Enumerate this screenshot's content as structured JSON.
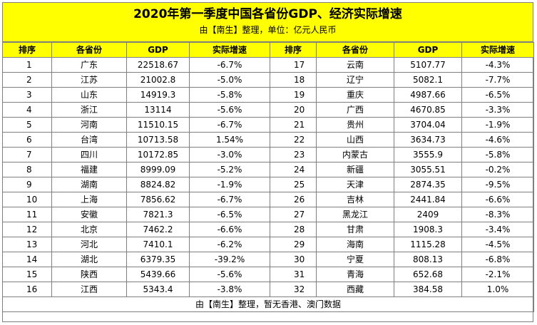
{
  "title": "2020年第一季度中国各省份GDP、经济实际增速",
  "subtitle": "由【南生】整理，单位：亿元人民币",
  "headers": [
    "排序",
    "各省份",
    "GDP",
    "实际增速",
    "排序",
    "各省份",
    "GDP",
    "实际增速"
  ],
  "rows": [
    {
      "left": {
        "rank": "1",
        "province": "广东",
        "gdp": "22518.67",
        "growth": "-6.7%"
      },
      "right": {
        "rank": "17",
        "province": "云南",
        "gdp": "5107.77",
        "growth": "-4.3%"
      }
    },
    {
      "left": {
        "rank": "2",
        "province": "江苏",
        "gdp": "21002.8",
        "growth": "-5.0%"
      },
      "right": {
        "rank": "18",
        "province": "辽宁",
        "gdp": "5082.1",
        "growth": "-7.7%"
      }
    },
    {
      "left": {
        "rank": "3",
        "province": "山东",
        "gdp": "14919.3",
        "growth": "-5.8%"
      },
      "right": {
        "rank": "19",
        "province": "重庆",
        "gdp": "4987.66",
        "growth": "-6.5%"
      }
    },
    {
      "left": {
        "rank": "4",
        "province": "浙江",
        "gdp": "13114",
        "growth": "-5.6%"
      },
      "right": {
        "rank": "20",
        "province": "广西",
        "gdp": "4670.85",
        "growth": "-3.3%"
      }
    },
    {
      "left": {
        "rank": "5",
        "province": "河南",
        "gdp": "11510.15",
        "growth": "-6.7%"
      },
      "right": {
        "rank": "21",
        "province": "贵州",
        "gdp": "3704.04",
        "growth": "-1.9%"
      }
    },
    {
      "left": {
        "rank": "6",
        "province": "台湾",
        "gdp": "10713.58",
        "growth": "1.54%"
      },
      "right": {
        "rank": "22",
        "province": "山西",
        "gdp": "3634.73",
        "growth": "-4.6%"
      }
    },
    {
      "left": {
        "rank": "7",
        "province": "四川",
        "gdp": "10172.85",
        "growth": "-3.0%"
      },
      "right": {
        "rank": "23",
        "province": "内蒙古",
        "gdp": "3555.9",
        "growth": "-5.8%"
      }
    },
    {
      "left": {
        "rank": "8",
        "province": "福建",
        "gdp": "8999.09",
        "growth": "-5.2%"
      },
      "right": {
        "rank": "24",
        "province": "新疆",
        "gdp": "3055.51",
        "growth": "-0.2%"
      }
    },
    {
      "left": {
        "rank": "9",
        "province": "湖南",
        "gdp": "8824.82",
        "growth": "-1.9%"
      },
      "right": {
        "rank": "25",
        "province": "天津",
        "gdp": "2874.35",
        "growth": "-9.5%"
      }
    },
    {
      "left": {
        "rank": "10",
        "province": "上海",
        "gdp": "7856.62",
        "growth": "-6.7%"
      },
      "right": {
        "rank": "26",
        "province": "吉林",
        "gdp": "2441.84",
        "growth": "-6.6%"
      }
    },
    {
      "left": {
        "rank": "11",
        "province": "安徽",
        "gdp": "7821.3",
        "growth": "-6.5%"
      },
      "right": {
        "rank": "27",
        "province": "黑龙江",
        "gdp": "2409",
        "growth": "-8.3%"
      }
    },
    {
      "left": {
        "rank": "12",
        "province": "北京",
        "gdp": "7462.2",
        "growth": "-6.6%"
      },
      "right": {
        "rank": "28",
        "province": "甘肃",
        "gdp": "1908.3",
        "growth": "-3.4%"
      }
    },
    {
      "left": {
        "rank": "13",
        "province": "河北",
        "gdp": "7410.1",
        "growth": "-6.2%"
      },
      "right": {
        "rank": "29",
        "province": "海南",
        "gdp": "1115.28",
        "growth": "-4.5%"
      }
    },
    {
      "left": {
        "rank": "14",
        "province": "湖北",
        "gdp": "6379.35",
        "growth": "-39.2%"
      },
      "right": {
        "rank": "30",
        "province": "宁夏",
        "gdp": "808.13",
        "growth": "-6.8%"
      }
    },
    {
      "left": {
        "rank": "15",
        "province": "陕西",
        "gdp": "5439.66",
        "growth": "-5.6%"
      },
      "right": {
        "rank": "31",
        "province": "青海",
        "gdp": "652.68",
        "growth": "-2.1%"
      }
    },
    {
      "left": {
        "rank": "16",
        "province": "江西",
        "gdp": "5343.4",
        "growth": "-3.8%"
      },
      "right": {
        "rank": "32",
        "province": "西藏",
        "gdp": "384.58",
        "growth": "1.0%"
      }
    }
  ],
  "footer": "由【南生】整理，暂无香港、澳门数据",
  "colors": {
    "title_band": "#ffff00",
    "grid_line": "#7f7f7f"
  }
}
